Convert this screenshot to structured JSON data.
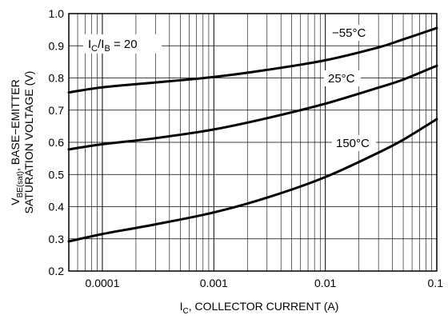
{
  "chart_data": {
    "type": "line",
    "x_scale": "log",
    "xlim": [
      5e-05,
      0.1
    ],
    "ylim": [
      0.2,
      1.0
    ],
    "grid": true,
    "x_ticks": [
      0.0001,
      0.001,
      0.01,
      0.1
    ],
    "x_tick_labels": [
      "0.0001",
      "0.001",
      "0.01",
      "0.1"
    ],
    "y_ticks": [
      0.2,
      0.3,
      0.4,
      0.5,
      0.6,
      0.7,
      0.8,
      0.9,
      1.0
    ],
    "y_tick_labels": [
      "0.2",
      "0.3",
      "0.4",
      "0.5",
      "0.6",
      "0.7",
      "0.8",
      "0.9",
      "1.0"
    ],
    "ylabel_line1": "V",
    "ylabel_sub": "BE(sat)",
    "ylabel_line1_rest": ", BASE−EMITTER",
    "ylabel_line2": "SATURATION VOLTAGE (V)",
    "xlabel_prefix": "I",
    "xlabel_sub": "C",
    "xlabel_rest": ", COLLECTOR CURRENT (A)",
    "annotation": {
      "a": "I",
      "a_sub": "C",
      "slash": "/I",
      "b_sub": "B",
      "rest": " = 20"
    },
    "series": [
      {
        "name": "−55°C",
        "x": [
          5e-05,
          0.0001,
          0.0003,
          0.001,
          0.003,
          0.01,
          0.03,
          0.05,
          0.1
        ],
        "y": [
          0.755,
          0.771,
          0.786,
          0.803,
          0.825,
          0.855,
          0.895,
          0.92,
          0.955
        ]
      },
      {
        "name": "25°C",
        "x": [
          5e-05,
          0.0001,
          0.0003,
          0.001,
          0.003,
          0.01,
          0.03,
          0.05,
          0.1
        ],
        "y": [
          0.578,
          0.594,
          0.613,
          0.64,
          0.675,
          0.72,
          0.77,
          0.795,
          0.838
        ]
      },
      {
        "name": "150°C",
        "x": [
          5e-05,
          0.0001,
          0.0003,
          0.001,
          0.003,
          0.01,
          0.03,
          0.05,
          0.1
        ],
        "y": [
          0.292,
          0.315,
          0.345,
          0.382,
          0.428,
          0.492,
          0.568,
          0.608,
          0.672
        ]
      }
    ]
  }
}
